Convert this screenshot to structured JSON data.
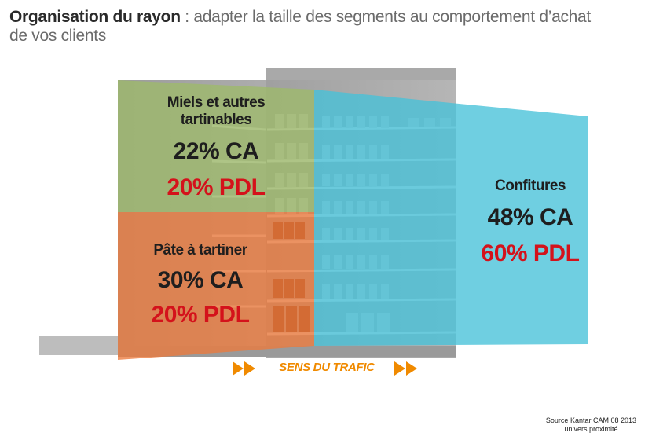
{
  "title": {
    "bold": "Organisation du rayon",
    "rest": " : adapter la taille des segments au comportement d’achat",
    "line2": "de vos clients"
  },
  "segments": {
    "miels": {
      "name_line1": "Miels et autres",
      "name_line2": "tartinables",
      "ca": "22% CA",
      "pdl": "20% PDL",
      "color": "#9dba6a"
    },
    "pate": {
      "name": "Pâte à tartiner",
      "ca": "30% CA",
      "pdl": "20% PDL",
      "color": "#ec7a3c"
    },
    "confitures": {
      "name": "Confitures",
      "ca": "48% CA",
      "pdl": "60% PDL",
      "color": "#47c2d8"
    }
  },
  "traffic": {
    "label": "SENS DU TRAFIC",
    "icon": "double-chevron-right-icon",
    "color": "#f08a00"
  },
  "source": {
    "line1": "Source  Kantar CAM 08 2013",
    "line2": "univers proximité"
  }
}
